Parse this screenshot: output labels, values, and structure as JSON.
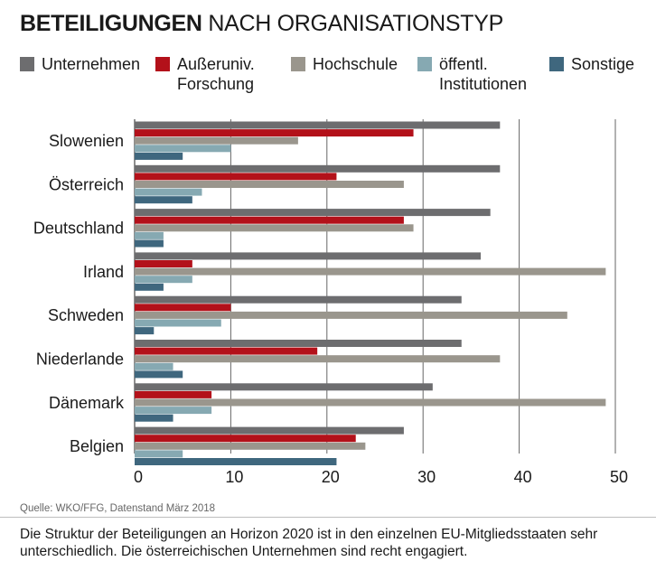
{
  "title_bold": "BETEILIGUNGEN",
  "title_rest": "NACH ORGANISATIONSTYP",
  "source": "Quelle: WKO/FFG, Datenstand März 2018",
  "caption": "Die Struktur der Beteiligungen an Horizon 2020 ist in den einzelnen EU-Mitgliedsstaaten sehr unterschiedlich. Die österreichischen Unternehmen sind recht engagiert.",
  "legend": [
    {
      "lines": [
        "Unternehmen"
      ],
      "color": "#6d6d6f"
    },
    {
      "lines": [
        "Außeruniv.",
        "Forschung"
      ],
      "color": "#b3111a"
    },
    {
      "lines": [
        "Hochschule"
      ],
      "color": "#9a968d"
    },
    {
      "lines": [
        "öffentl.",
        "Institutionen"
      ],
      "color": "#86a9b2"
    },
    {
      "lines": [
        "Sonstige"
      ],
      "color": "#3f677e"
    }
  ],
  "chart_data": {
    "type": "bar",
    "orientation": "horizontal",
    "categories": [
      "Slowenien",
      "Österreich",
      "Deutschland",
      "Irland",
      "Schweden",
      "Niederlande",
      "Dänemark",
      "Belgien"
    ],
    "series": [
      {
        "name": "Unternehmen",
        "color": "#6d6d6f",
        "values": [
          38,
          38,
          37,
          36,
          34,
          34,
          31,
          28
        ]
      },
      {
        "name": "Außeruniv. Forschung",
        "color": "#b3111a",
        "values": [
          29,
          21,
          28,
          6,
          10,
          19,
          8,
          23
        ]
      },
      {
        "name": "Hochschule",
        "color": "#9a968d",
        "values": [
          17,
          28,
          29,
          49,
          45,
          38,
          49,
          24
        ]
      },
      {
        "name": "öffentl. Institutionen",
        "color": "#86a9b2",
        "values": [
          10,
          7,
          3,
          6,
          9,
          4,
          8,
          5
        ]
      },
      {
        "name": "Sonstige",
        "color": "#3f677e",
        "values": [
          5,
          6,
          3,
          3,
          2,
          5,
          4,
          21
        ]
      }
    ],
    "xticks": [
      0,
      10,
      20,
      30,
      40,
      50
    ],
    "xlim": [
      0,
      50
    ],
    "grid": true,
    "legend_position": "top"
  }
}
